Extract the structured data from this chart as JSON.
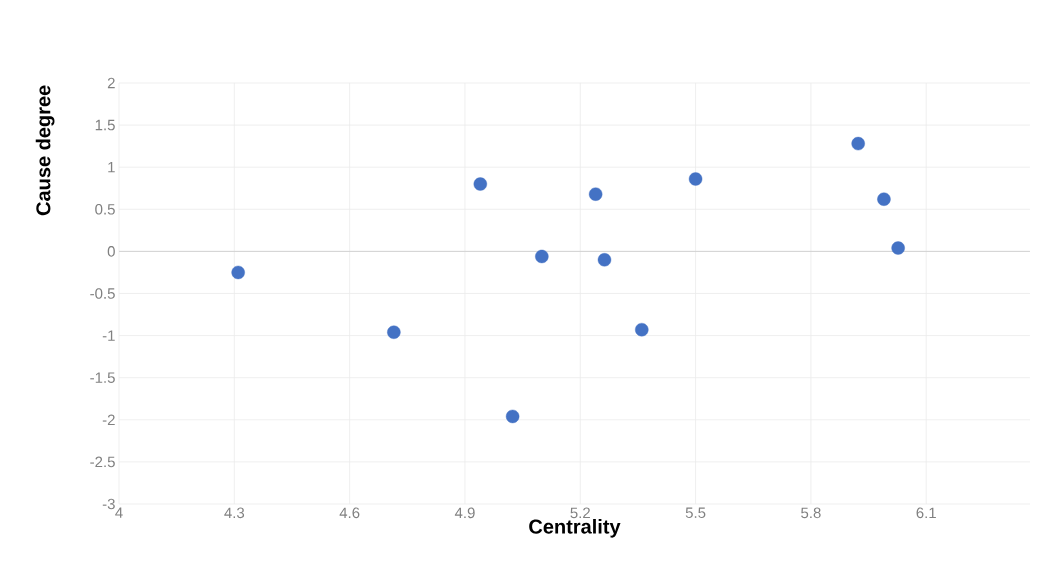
{
  "chart_data": {
    "type": "scatter",
    "xlabel": "Centrality",
    "ylabel": "Cause degree",
    "x": [
      4.31,
      4.715,
      4.94,
      5.024,
      5.1,
      5.24,
      5.263,
      5.36,
      5.5,
      5.923,
      5.99,
      6.027
    ],
    "values": [
      -0.25,
      -0.96,
      0.8,
      -1.96,
      -0.06,
      0.68,
      -0.1,
      -0.93,
      0.86,
      1.28,
      0.62,
      0.04
    ],
    "color": "#4472c4",
    "grid": true,
    "xlim": [
      4,
      6.37
    ],
    "ylim": [
      -3,
      2
    ],
    "xticks": [
      4,
      4.3,
      4.6,
      4.9,
      5.2,
      5.5,
      5.8,
      6.1
    ],
    "yticks": [
      -3,
      -2.5,
      -2,
      -1.5,
      -1,
      -0.5,
      0,
      0.5,
      1,
      1.5,
      2
    ]
  }
}
